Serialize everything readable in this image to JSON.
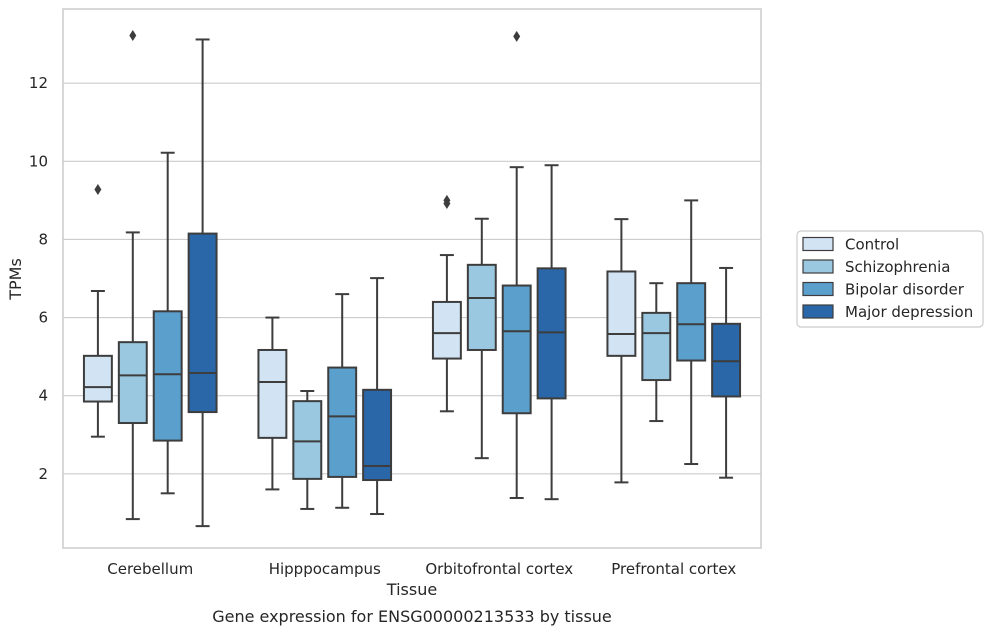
{
  "chart_data": {
    "type": "box",
    "title": "",
    "caption": "Gene expression for ENSG00000213533 by tissue",
    "xlabel": "Tissue",
    "ylabel": "TPMs",
    "ylim": [
      0.1,
      13.9
    ],
    "yticks": [
      2,
      4,
      6,
      8,
      10,
      12
    ],
    "grid": "horizontal",
    "legend_position": "right",
    "categories": [
      "Cerebellum",
      "Hipppocampus",
      "Orbitofrontal cortex",
      "Prefrontal cortex"
    ],
    "series": [
      {
        "name": "Control",
        "color": "#d2e3f3",
        "boxes": [
          {
            "whislo": 2.95,
            "q1": 3.85,
            "med": 4.22,
            "q3": 5.02,
            "whishi": 6.68,
            "fliers": [
              9.28
            ]
          },
          {
            "whislo": 1.6,
            "q1": 2.92,
            "med": 4.35,
            "q3": 5.17,
            "whishi": 6.0,
            "fliers": []
          },
          {
            "whislo": 3.6,
            "q1": 4.95,
            "med": 5.6,
            "q3": 6.4,
            "whishi": 7.6,
            "fliers": [
              8.92,
              9.0
            ]
          },
          {
            "whislo": 1.78,
            "q1": 5.02,
            "med": 5.58,
            "q3": 7.18,
            "whishi": 8.52,
            "fliers": []
          }
        ]
      },
      {
        "name": "Schizophrenia",
        "color": "#9ac8e0",
        "boxes": [
          {
            "whislo": 0.84,
            "q1": 3.3,
            "med": 4.52,
            "q3": 5.37,
            "whishi": 8.18,
            "fliers": [
              13.22
            ]
          },
          {
            "whislo": 1.1,
            "q1": 1.87,
            "med": 2.83,
            "q3": 3.86,
            "whishi": 4.12,
            "fliers": []
          },
          {
            "whislo": 2.4,
            "q1": 5.17,
            "med": 6.5,
            "q3": 7.35,
            "whishi": 8.53,
            "fliers": []
          },
          {
            "whislo": 3.35,
            "q1": 4.4,
            "med": 5.6,
            "q3": 6.12,
            "whishi": 6.88,
            "fliers": []
          }
        ]
      },
      {
        "name": "Bipolar disorder",
        "color": "#5b9fcc",
        "boxes": [
          {
            "whislo": 1.5,
            "q1": 2.85,
            "med": 4.55,
            "q3": 6.16,
            "whishi": 10.22,
            "fliers": []
          },
          {
            "whislo": 1.13,
            "q1": 1.92,
            "med": 3.47,
            "q3": 4.72,
            "whishi": 6.6,
            "fliers": []
          },
          {
            "whislo": 1.38,
            "q1": 3.55,
            "med": 5.65,
            "q3": 6.82,
            "whishi": 9.85,
            "fliers": [
              13.2
            ]
          },
          {
            "whislo": 2.25,
            "q1": 4.9,
            "med": 5.83,
            "q3": 6.88,
            "whishi": 9.0,
            "fliers": []
          }
        ]
      },
      {
        "name": "Major depression",
        "color": "#2967a8",
        "boxes": [
          {
            "whislo": 0.66,
            "q1": 3.58,
            "med": 4.58,
            "q3": 8.15,
            "whishi": 13.12,
            "fliers": []
          },
          {
            "whislo": 0.97,
            "q1": 1.84,
            "med": 2.2,
            "q3": 4.15,
            "whishi": 7.01,
            "fliers": []
          },
          {
            "whislo": 1.35,
            "q1": 3.93,
            "med": 5.62,
            "q3": 7.26,
            "whishi": 9.9,
            "fliers": []
          },
          {
            "whislo": 1.9,
            "q1": 3.98,
            "med": 4.88,
            "q3": 5.84,
            "whishi": 7.27,
            "fliers": []
          }
        ]
      }
    ]
  }
}
